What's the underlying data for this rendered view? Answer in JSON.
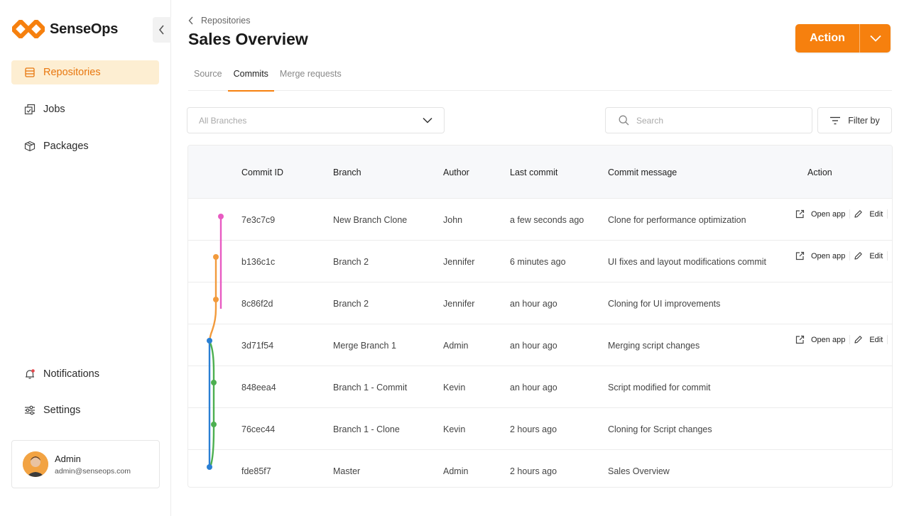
{
  "app": {
    "name": "SenseOps"
  },
  "sidebar": {
    "items": [
      {
        "label": "Repositories",
        "icon": "database-icon",
        "active": true
      },
      {
        "label": "Jobs",
        "icon": "jobs-icon",
        "active": false
      },
      {
        "label": "Packages",
        "icon": "package-icon",
        "active": false
      }
    ],
    "bottom_items": [
      {
        "label": "Notifications",
        "icon": "bell-icon"
      },
      {
        "label": "Settings",
        "icon": "sliders-icon"
      }
    ],
    "user": {
      "name": "Admin",
      "email": "admin@senseops.com"
    }
  },
  "header": {
    "breadcrumb": "Repositories",
    "title": "Sales Overview",
    "action_label": "Action"
  },
  "tabs": [
    {
      "label": "Source",
      "active": false
    },
    {
      "label": "Commits",
      "active": true
    },
    {
      "label": "Merge requests",
      "active": false
    }
  ],
  "filters": {
    "branch_placeholder": "All Branches",
    "search_placeholder": "Search",
    "filter_label": "Filter by"
  },
  "table": {
    "columns": [
      "Commit ID",
      "Branch",
      "Author",
      "Last commit",
      "Commit message",
      "Action"
    ],
    "action_labels": {
      "open": "Open app",
      "edit": "Edit"
    },
    "rows": [
      {
        "id": "7e3c7c9",
        "branch": "New Branch Clone",
        "author": "John",
        "time": "a few seconds ago",
        "message": "Clone for performance optimization",
        "has_actions": true
      },
      {
        "id": "b136c1c",
        "branch": "Branch 2",
        "author": "Jennifer",
        "time": "6 minutes ago",
        "message": "UI fixes and layout modifications commit",
        "has_actions": true
      },
      {
        "id": "8c86f2d",
        "branch": "Branch 2",
        "author": "Jennifer",
        "time": "an hour ago",
        "message": "Cloning for UI improvements",
        "has_actions": false
      },
      {
        "id": "3d71f54",
        "branch": "Merge Branch 1",
        "author": "Admin",
        "time": "an hour ago",
        "message": "Merging script changes",
        "has_actions": true
      },
      {
        "id": "848eea4",
        "branch": "Branch 1 - Commit",
        "author": "Kevin",
        "time": "an hour ago",
        "message": "Script modified for commit",
        "has_actions": false
      },
      {
        "id": "76cec44",
        "branch": "Branch 1 - Clone",
        "author": "Kevin",
        "time": "2 hours ago",
        "message": "Cloning for Script changes",
        "has_actions": false
      },
      {
        "id": "fde85f7",
        "branch": "Master",
        "author": "Admin",
        "time": "2 hours ago",
        "message": "Sales Overview",
        "has_actions": false
      }
    ]
  },
  "colors": {
    "accent": "#f6800e",
    "active_bg": "#fdeed2",
    "graph_pink": "#e85bc2",
    "graph_orange": "#f29a3c",
    "graph_blue": "#2a7fd4",
    "graph_green": "#4caf50"
  }
}
